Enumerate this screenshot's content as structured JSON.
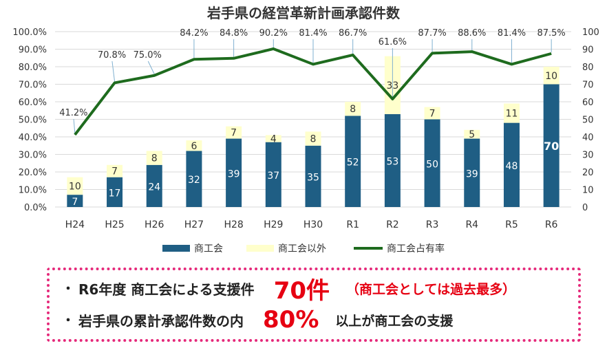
{
  "chart_data": {
    "type": "bar",
    "title": "岩手県の経営革新計画承認件数",
    "categories": [
      "H24",
      "H25",
      "H26",
      "H27",
      "H28",
      "H29",
      "H30",
      "R1",
      "R2",
      "R3",
      "R4",
      "R5",
      "R6"
    ],
    "series": [
      {
        "name": "商工会",
        "values": [
          7,
          17,
          24,
          32,
          39,
          37,
          35,
          52,
          53,
          50,
          39,
          48,
          70
        ],
        "color": "#1f5e84",
        "axis": "right"
      },
      {
        "name": "商工会以外",
        "values": [
          10,
          7,
          8,
          6,
          7,
          4,
          8,
          8,
          33,
          7,
          5,
          11,
          10
        ],
        "color": "#ffffcc",
        "axis": "right"
      },
      {
        "name": "商工会占有率",
        "values": [
          41.2,
          70.8,
          75.0,
          84.2,
          84.8,
          90.2,
          81.4,
          86.7,
          61.6,
          87.7,
          88.6,
          81.4,
          87.5
        ],
        "color": "#1e6b1e",
        "axis": "left",
        "kind": "line"
      }
    ],
    "pct_labels": [
      "41.2%",
      "70.8%",
      "75.0%",
      "84.2%",
      "84.8%",
      "90.2%",
      "81.4%",
      "86.7%",
      "61.6%",
      "87.7%",
      "88.6%",
      "81.4%",
      "87.5%"
    ],
    "y_left_ticks": [
      "0.0%",
      "10.0%",
      "20.0%",
      "30.0%",
      "40.0%",
      "50.0%",
      "60.0%",
      "70.0%",
      "80.0%",
      "90.0%",
      "100.0%"
    ],
    "y_left_range": [
      0,
      100
    ],
    "y_right_ticks": [
      "0",
      "10",
      "20",
      "30",
      "40",
      "50",
      "60",
      "70",
      "80",
      "90",
      "100"
    ],
    "y_right_range": [
      0,
      100
    ],
    "highlight_category": "R6",
    "legend": [
      "商工会",
      "商工会以外",
      "商工会占有率"
    ],
    "legend_position": "bottom"
  },
  "summary": {
    "bullet": "・",
    "line1_text": "R6年度 商工会による支援件",
    "line1_value": "70件",
    "line1_note": "（商工会としては過去最多）",
    "line2_text": "岩手県の累計承認件数の内",
    "line2_value": "80%",
    "line2_note": "以上が商工会の支援",
    "accent_color": "#e60012",
    "border_color": "#e5297a"
  }
}
